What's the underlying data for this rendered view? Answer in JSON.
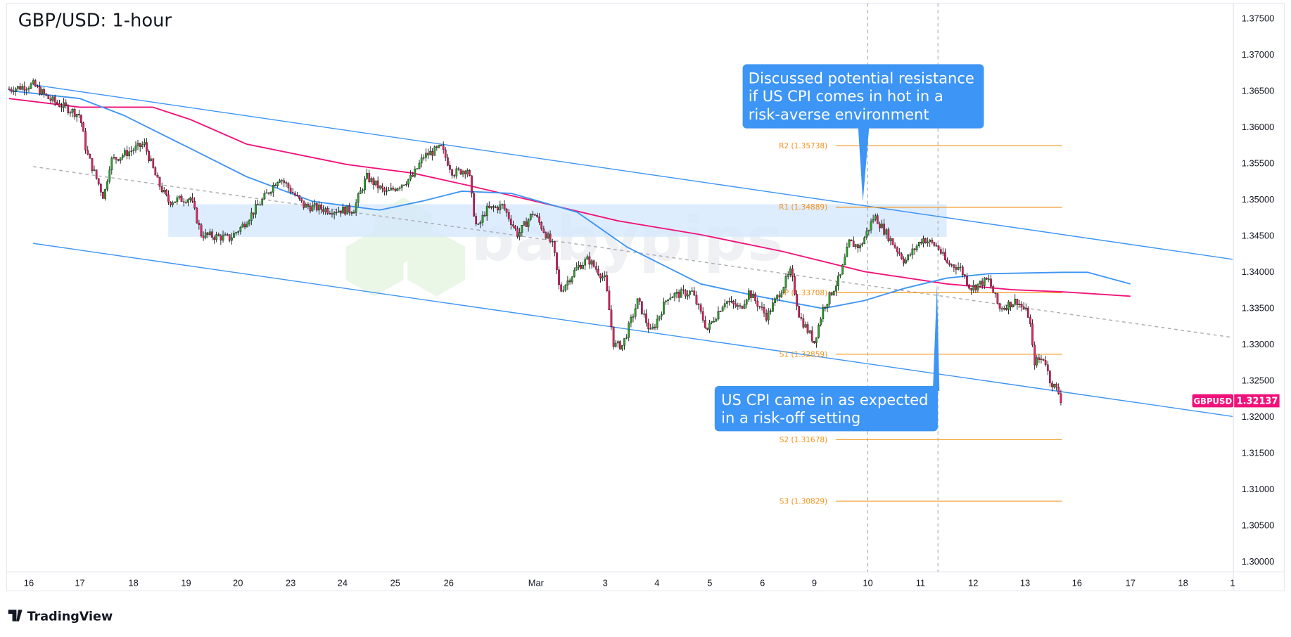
{
  "title": "GBP/USD: 1-hour",
  "footer": {
    "brand": "TradingView"
  },
  "watermark": "babypips",
  "price_tag": {
    "symbol": "GBPUSD",
    "price": "1.32137",
    "color": "#f0127a"
  },
  "callouts": [
    {
      "lines": [
        "Discussed potential resistance",
        "if US CPI comes in hot in a",
        "risk-averse environment"
      ],
      "color": "#3d95f5"
    },
    {
      "lines": [
        "US CPI came in as expected",
        "in a risk-off setting"
      ],
      "color": "#3d95f5"
    }
  ],
  "chart_data": {
    "type": "candlestick",
    "symbol": "GBPUSD",
    "interval": "1-hour",
    "ylim": [
      1.3,
      1.375
    ],
    "y_ticks": [
      "1.37500",
      "1.37000",
      "1.36500",
      "1.36000",
      "1.35500",
      "1.35000",
      "1.34500",
      "1.34000",
      "1.33500",
      "1.33000",
      "1.32500",
      "1.32000",
      "1.31500",
      "1.31000",
      "1.30500",
      "1.30000"
    ],
    "x_ticks": [
      {
        "label": "16",
        "date": "Feb 16"
      },
      {
        "label": "17",
        "date": "Feb 17"
      },
      {
        "label": "18",
        "date": "Feb 18"
      },
      {
        "label": "19",
        "date": "Feb 19"
      },
      {
        "label": "20",
        "date": "Feb 20"
      },
      {
        "label": "23",
        "date": "Feb 23"
      },
      {
        "label": "24",
        "date": "Feb 24"
      },
      {
        "label": "25",
        "date": "Feb 25"
      },
      {
        "label": "26",
        "date": "Feb 26"
      },
      {
        "label": "Mar",
        "date": "Mar 1"
      },
      {
        "label": "3",
        "date": "Mar 3"
      },
      {
        "label": "4",
        "date": "Mar 4"
      },
      {
        "label": "5",
        "date": "Mar 5"
      },
      {
        "label": "6",
        "date": "Mar 6"
      },
      {
        "label": "9",
        "date": "Mar 9"
      },
      {
        "label": "10",
        "date": "Mar 10"
      },
      {
        "label": "11",
        "date": "Mar 11"
      },
      {
        "label": "12",
        "date": "Mar 12"
      },
      {
        "label": "13",
        "date": "Mar 13"
      },
      {
        "label": "16",
        "date": "Mar 16"
      },
      {
        "label": "17",
        "date": "Mar 17"
      },
      {
        "label": "18",
        "date": "Mar 18"
      },
      {
        "label": "1",
        "date": "Mar 19"
      }
    ],
    "colors": {
      "up": "#2ca02c",
      "down": "#e91e63",
      "sma100": "#3d95f5",
      "sma200": "#f0127a",
      "channel": "#3d95f5",
      "pivots": "#f7931a",
      "zone": "#d6e8fd"
    },
    "price_path": [
      {
        "t": "Feb 15 15:00",
        "p": 1.3652
      },
      {
        "t": "Feb 16 02:00",
        "p": 1.3658
      },
      {
        "t": "Feb 16 09:00",
        "p": 1.3639
      },
      {
        "t": "Feb 17 00:00",
        "p": 1.3616
      },
      {
        "t": "Feb 17 03:00",
        "p": 1.3565
      },
      {
        "t": "Feb 17 11:00",
        "p": 1.3502
      },
      {
        "t": "Feb 17 14:00",
        "p": 1.3553
      },
      {
        "t": "Feb 18 05:00",
        "p": 1.3576
      },
      {
        "t": "Feb 18 11:00",
        "p": 1.3525
      },
      {
        "t": "Feb 18 16:00",
        "p": 1.3497
      },
      {
        "t": "Feb 19 02:00",
        "p": 1.3502
      },
      {
        "t": "Feb 19 07:00",
        "p": 1.3451
      },
      {
        "t": "Feb 19 20:00",
        "p": 1.3446
      },
      {
        "t": "Feb 20 02:00",
        "p": 1.3463
      },
      {
        "t": "Feb 20 12:00",
        "p": 1.3502
      },
      {
        "t": "Feb 20 19:00",
        "p": 1.3531
      },
      {
        "t": "Feb 23 06:00",
        "p": 1.3491
      },
      {
        "t": "Feb 23 18:00",
        "p": 1.3485
      },
      {
        "t": "Feb 24 05:00",
        "p": 1.3485
      },
      {
        "t": "Feb 24 11:00",
        "p": 1.3531
      },
      {
        "t": "Feb 24 20:00",
        "p": 1.3508
      },
      {
        "t": "Feb 25 08:00",
        "p": 1.3531
      },
      {
        "t": "Feb 25 13:00",
        "p": 1.3559
      },
      {
        "t": "Feb 25 21:00",
        "p": 1.3571
      },
      {
        "t": "Feb 26 02:00",
        "p": 1.3536
      },
      {
        "t": "Feb 26 09:00",
        "p": 1.3542
      },
      {
        "t": "Feb 26 11:00",
        "p": 1.3491
      },
      {
        "t": "Feb 26 13:00",
        "p": 1.3457
      },
      {
        "t": "Feb 26 17:00",
        "p": 1.3485
      },
      {
        "t": "Feb 27 01:00",
        "p": 1.3491
      },
      {
        "t": "Feb 27 08:00",
        "p": 1.3451
      },
      {
        "t": "Feb 27 15:00",
        "p": 1.3482
      },
      {
        "t": "Mar 2 00:00",
        "p": 1.3434
      },
      {
        "t": "Mar 2 03:00",
        "p": 1.3372
      },
      {
        "t": "Mar 2 11:00",
        "p": 1.3406
      },
      {
        "t": "Mar 2 16:00",
        "p": 1.3417
      },
      {
        "t": "Mar 3 00:00",
        "p": 1.3389
      },
      {
        "t": "Mar 3 04:00",
        "p": 1.3298
      },
      {
        "t": "Mar 3 08:00",
        "p": 1.3298
      },
      {
        "t": "Mar 3 15:00",
        "p": 1.336
      },
      {
        "t": "Mar 3 21:00",
        "p": 1.3315
      },
      {
        "t": "Mar 4 05:00",
        "p": 1.3366
      },
      {
        "t": "Mar 4 16:00",
        "p": 1.3372
      },
      {
        "t": "Mar 4 23:00",
        "p": 1.332
      },
      {
        "t": "Mar 5 07:00",
        "p": 1.336
      },
      {
        "t": "Mar 5 14:00",
        "p": 1.3349
      },
      {
        "t": "Mar 5 18:00",
        "p": 1.3372
      },
      {
        "t": "Mar 6 02:00",
        "p": 1.3338
      },
      {
        "t": "Mar 6 07:00",
        "p": 1.3366
      },
      {
        "t": "Mar 6 13:00",
        "p": 1.34
      },
      {
        "t": "Mar 6 17:00",
        "p": 1.3338
      },
      {
        "t": "Mar 9 00:00",
        "p": 1.3303
      },
      {
        "t": "Mar 9 04:00",
        "p": 1.3349
      },
      {
        "t": "Mar 9 12:00",
        "p": 1.3394
      },
      {
        "t": "Mar 9 16:00",
        "p": 1.344
      },
      {
        "t": "Mar 9 21:00",
        "p": 1.3434
      },
      {
        "t": "Mar 10 03:00",
        "p": 1.3477
      },
      {
        "t": "Mar 10 10:00",
        "p": 1.3446
      },
      {
        "t": "Mar 10 17:00",
        "p": 1.3414
      },
      {
        "t": "Mar 11 01:00",
        "p": 1.3446
      },
      {
        "t": "Mar 11 08:00",
        "p": 1.3434
      },
      {
        "t": "Mar 11 12:00",
        "p": 1.3411
      },
      {
        "t": "Mar 11 18:00",
        "p": 1.3406
      },
      {
        "t": "Mar 11 23:00",
        "p": 1.3377
      },
      {
        "t": "Mar 12 07:00",
        "p": 1.3389
      },
      {
        "t": "Mar 12 12:00",
        "p": 1.3349
      },
      {
        "t": "Mar 12 20:00",
        "p": 1.336
      },
      {
        "t": "Mar 13 02:00",
        "p": 1.3338
      },
      {
        "t": "Mar 13 04:00",
        "p": 1.3275
      },
      {
        "t": "Mar 13 09:00",
        "p": 1.3281
      },
      {
        "t": "Mar 13 11:00",
        "p": 1.3252
      },
      {
        "t": "Mar 13 16:00",
        "p": 1.323
      },
      {
        "t": "Mar 13 17:00",
        "p": 1.32137
      }
    ],
    "sma100": [
      {
        "t": "Feb 15 15:00",
        "p": 1.365
      },
      {
        "t": "Feb 17 00:00",
        "p": 1.3639
      },
      {
        "t": "Feb 17 20:00",
        "p": 1.3616
      },
      {
        "t": "Feb 19 02:00",
        "p": 1.357
      },
      {
        "t": "Feb 20 04:00",
        "p": 1.3531
      },
      {
        "t": "Feb 23 10:00",
        "p": 1.3497
      },
      {
        "t": "Feb 24 17:00",
        "p": 1.3485
      },
      {
        "t": "Feb 25 12:00",
        "p": 1.3497
      },
      {
        "t": "Feb 26 06:00",
        "p": 1.3511
      },
      {
        "t": "Feb 27 05:00",
        "p": 1.3508
      },
      {
        "t": "Mar 2 11:00",
        "p": 1.3482
      },
      {
        "t": "Mar 3 10:00",
        "p": 1.3434
      },
      {
        "t": "Mar 4 20:00",
        "p": 1.3383
      },
      {
        "t": "Mar 5 22:00",
        "p": 1.3366
      },
      {
        "t": "Mar 9 04:00",
        "p": 1.3349
      },
      {
        "t": "Mar 9 23:00",
        "p": 1.336
      },
      {
        "t": "Mar 10 17:00",
        "p": 1.3377
      },
      {
        "t": "Mar 11 12:00",
        "p": 1.3391
      },
      {
        "t": "Mar 12 07:00",
        "p": 1.3397
      },
      {
        "t": "Mar 12 22:00",
        "p": 1.3398
      },
      {
        "t": "Mar 13 17:00",
        "p": 1.3399
      },
      {
        "t": "Mar 16 05:00",
        "p": 1.3399
      },
      {
        "t": "Mar 17 00:00",
        "p": 1.3383
      }
    ],
    "sma200": [
      {
        "t": "Feb 15 15:00",
        "p": 1.3639
      },
      {
        "t": "Feb 17 00:00",
        "p": 1.3627
      },
      {
        "t": "Feb 18 09:00",
        "p": 1.3627
      },
      {
        "t": "Feb 19 02:00",
        "p": 1.361
      },
      {
        "t": "Feb 20 04:00",
        "p": 1.3576
      },
      {
        "t": "Feb 24 02:00",
        "p": 1.3548
      },
      {
        "t": "Feb 25 08:00",
        "p": 1.3536
      },
      {
        "t": "Feb 26 09:00",
        "p": 1.3519
      },
      {
        "t": "Feb 27 16:00",
        "p": 1.3497
      },
      {
        "t": "Mar 3 06:00",
        "p": 1.347
      },
      {
        "t": "Mar 4 20:00",
        "p": 1.3451
      },
      {
        "t": "Mar 6 09:00",
        "p": 1.3428
      },
      {
        "t": "Mar 9 23:00",
        "p": 1.34
      },
      {
        "t": "Mar 11 12:00",
        "p": 1.3383
      },
      {
        "t": "Mar 12 18:00",
        "p": 1.3375
      },
      {
        "t": "Mar 13 17:00",
        "p": 1.3372
      },
      {
        "t": "Mar 17 00:00",
        "p": 1.3366
      }
    ],
    "channel": {
      "upper": [
        {
          "t": "Feb 16 02:00",
          "p": 1.3658
        },
        {
          "t": "Mar 19 00:00",
          "p": 1.3417
        }
      ],
      "middle": [
        {
          "t": "Feb 16 02:00",
          "p": 1.3545
        },
        {
          "t": "Mar 19 00:00",
          "p": 1.3309
        }
      ],
      "lower": [
        {
          "t": "Feb 16 02:00",
          "p": 1.3439
        },
        {
          "t": "Mar 19 00:00",
          "p": 1.32
        }
      ]
    },
    "resistance_zone": {
      "from": "Feb 18 16:00",
      "to": "Mar 11 12:00",
      "top": 1.3493,
      "bottom": 1.3448
    },
    "event_lines": [
      "Mar 10 00:00",
      "Mar 11 08:00"
    ],
    "pivots": {
      "from": "Mar 6 17:00",
      "to": "Mar 13 17:00",
      "levels": [
        {
          "name": "R2",
          "label": "R2 (1.35738)",
          "value": 1.35738
        },
        {
          "name": "R1",
          "label": "R1 (1.34889)",
          "value": 1.34889
        },
        {
          "name": "P",
          "label": "P (1.33708)",
          "value": 1.33708
        },
        {
          "name": "S1",
          "label": "S1 (1.32859)",
          "value": 1.32859
        },
        {
          "name": "S2",
          "label": "S2 (1.31678)",
          "value": 1.31678
        },
        {
          "name": "S3",
          "label": "S3 (1.30829)",
          "value": 1.30829
        }
      ]
    },
    "last_price": 1.32137
  }
}
